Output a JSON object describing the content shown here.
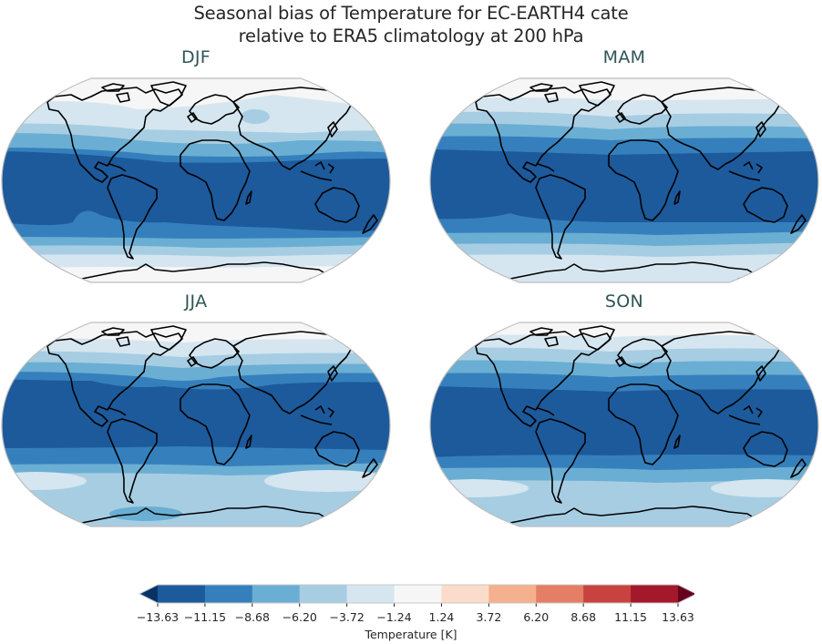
{
  "title": {
    "line1": "Seasonal bias of Temperature for EC-EARTH4 cate",
    "line2": "relative to ERA5 climatology at 200 hPa"
  },
  "panels": [
    {
      "label": "DJF"
    },
    {
      "label": "MAM"
    },
    {
      "label": "JJA"
    },
    {
      "label": "SON"
    }
  ],
  "colorbar": {
    "label": "Temperature [K]",
    "ticks": [
      "−13.63",
      "−11.15",
      "−8.68",
      "−6.20",
      "−3.72",
      "−1.24",
      "1.24",
      "3.72",
      "6.20",
      "8.68",
      "11.15",
      "13.63"
    ],
    "colors": [
      "#1c5a9c",
      "#3580bc",
      "#6aaed3",
      "#a7cde3",
      "#d5e6f0",
      "#f6f6f6",
      "#fbdcca",
      "#f5b08e",
      "#e47e64",
      "#c8433f",
      "#a3182a"
    ],
    "under_color": "#093264",
    "over_color": "#67001f"
  },
  "chart_data": {
    "type": "heatmap",
    "title": "Seasonal bias of Temperature for EC-EARTH4 cate relative to ERA5 climatology at 200 hPa",
    "subplots": [
      "DJF",
      "MAM",
      "JJA",
      "SON"
    ],
    "projection": "Robinson (global map with coastlines)",
    "variable": "Temperature bias",
    "units": "K",
    "pressure_level_hPa": 200,
    "reference": "ERA5 climatology",
    "model": "EC-EARTH4",
    "colorbar": {
      "label": "Temperature [K]",
      "levels": [
        -13.63,
        -11.15,
        -8.68,
        -6.2,
        -3.72,
        -1.24,
        1.24,
        3.72,
        6.2,
        8.68,
        11.15,
        13.63
      ],
      "extend": "both",
      "colormap": "RdBu_r",
      "orientation": "horizontal",
      "position": "bottom"
    },
    "qualitative_patterns": {
      "DJF": "Strong cold bias (-13.63 to -11.15 K) in tropical belt ~25S-20N; bias weakens poleward; near-zero (-1.24 to 1.24 K) over high northern latitudes and Antarctica; small -6.2 to -3.72 K patch over Siberia",
      "MAM": "Cold tropical band (-13.63 to -11.15 K) ~20S-25N; graded weaker bias toward poles; near-zero over Arctic and Antarctic edges",
      "JJA": "Cold tropical band shifted north (~15S-35N) at -13.63 to -11.15 K; Southern Hemisphere mid-high latitudes -6.2 to -3.72 K with -3.72 to -1.24 K patches; Arctic near zero",
      "SON": "Cold tropical band (-13.63 to -11.15 K) ~20S-25N; Southern Ocean -6.2 to -3.72 K; Arctic near zero"
    }
  }
}
